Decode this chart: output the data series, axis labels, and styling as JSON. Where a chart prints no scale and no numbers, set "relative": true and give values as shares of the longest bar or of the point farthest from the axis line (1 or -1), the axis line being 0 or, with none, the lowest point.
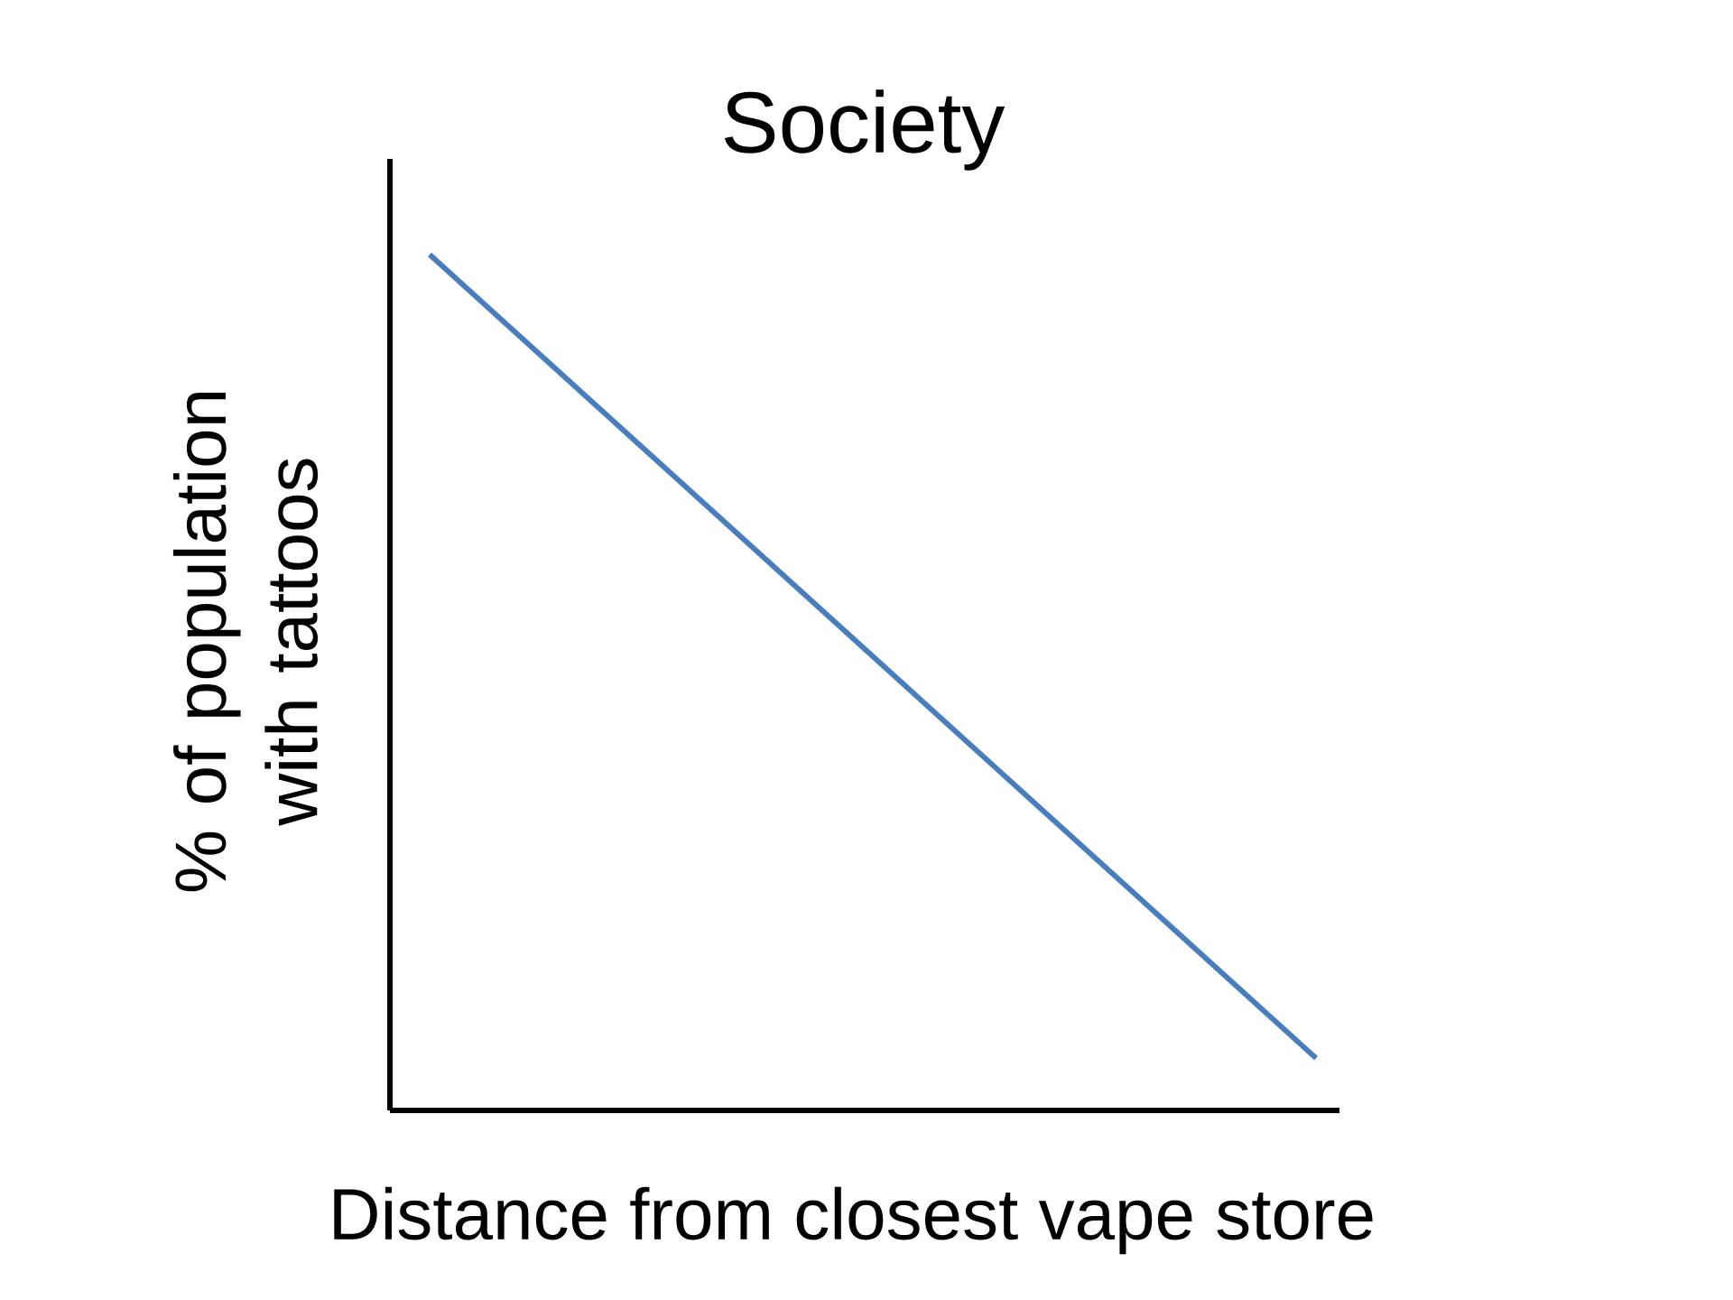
{
  "chart_data": {
    "type": "line",
    "title": "Society",
    "xlabel": "Distance from closest vape store",
    "ylabel": "% of population with tattoos",
    "relative": true,
    "categories": [
      null,
      null
    ],
    "series": [
      {
        "color": "#4a7ebb",
        "values": [
          1,
          0.061
        ]
      }
    ]
  }
}
